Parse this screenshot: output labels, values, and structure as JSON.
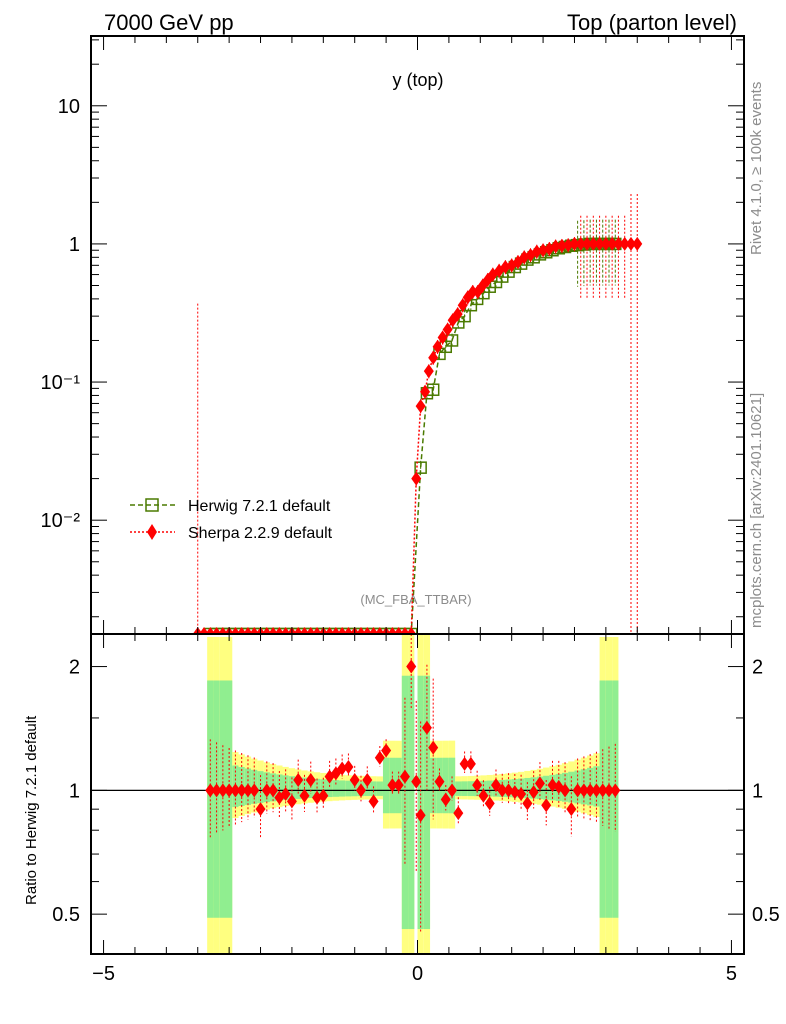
{
  "header": {
    "left": "7000 GeV pp",
    "right": "Top (parton level)"
  },
  "side": {
    "rivet": "Rivet 4.1.0, ≥ 100k events",
    "mcplots": "mcplots.cern.ch [arXiv:2401.10621]"
  },
  "watermark": "(MC_FBA_TTBAR)",
  "ratio_ylabel": "Ratio to Herwig 7.2.1 default",
  "colors": {
    "herwig": "#4a7a00",
    "sherpa": "#ff0000",
    "band_yellow": "#ffff80",
    "band_green": "#90ee90"
  },
  "chart_data": [
    {
      "type": "scatter",
      "title": "y (top)",
      "xlabel": "",
      "ylabel": "",
      "yscale": "log",
      "xlim": [
        -5.2,
        5.2
      ],
      "ylim": [
        0.0015,
        32
      ],
      "x_ticks": [
        "−5",
        "0",
        "5"
      ],
      "y_ticks": [
        "10",
        "1",
        "10⁻¹",
        "10⁻²"
      ],
      "legend": [
        "Herwig 7.2.1 default",
        "Sherpa 2.2.9 default"
      ],
      "series": [
        {
          "name": "Herwig 7.2.1 default",
          "style": "dashed-green-open-square",
          "x": [
            -3.3,
            -3.2,
            -3.1,
            -3.0,
            -2.9,
            -2.8,
            -2.7,
            -2.6,
            -2.5,
            -2.4,
            -2.3,
            -2.2,
            -2.1,
            -2.0,
            -1.9,
            -1.8,
            -1.7,
            -1.6,
            -1.5,
            -1.4,
            -1.3,
            -1.2,
            -1.1,
            -1.0,
            -0.9,
            -0.8,
            -0.7,
            -0.6,
            -0.5,
            -0.4,
            -0.3,
            -0.2,
            -0.1,
            0.05,
            0.15,
            0.25,
            0.35,
            0.45,
            0.55,
            0.65,
            0.75,
            0.85,
            0.95,
            1.05,
            1.15,
            1.25,
            1.35,
            1.45,
            1.55,
            1.65,
            1.75,
            1.85,
            1.95,
            2.05,
            2.15,
            2.25,
            2.35,
            2.45,
            2.55,
            2.65,
            2.75,
            2.85,
            2.95,
            3.05,
            3.15
          ],
          "y": [
            0.0015,
            0.0015,
            0.0015,
            0.0015,
            0.0015,
            0.0015,
            0.0015,
            0.0015,
            0.0015,
            0.0015,
            0.0015,
            0.0015,
            0.0015,
            0.0015,
            0.0015,
            0.0015,
            0.0015,
            0.0015,
            0.0015,
            0.0015,
            0.0015,
            0.0015,
            0.0015,
            0.0015,
            0.0015,
            0.0015,
            0.0015,
            0.0015,
            0.0015,
            0.0015,
            0.0015,
            0.0015,
            0.0015,
            0.024,
            0.083,
            0.088,
            0.16,
            0.18,
            0.2,
            0.27,
            0.3,
            0.36,
            0.4,
            0.44,
            0.49,
            0.53,
            0.58,
            0.63,
            0.68,
            0.72,
            0.77,
            0.8,
            0.84,
            0.87,
            0.9,
            0.93,
            0.95,
            0.97,
            0.98,
            0.99,
            1.0,
            1.0,
            1.0,
            1.0,
            1.0
          ]
        },
        {
          "name": "Sherpa 2.2.9 default",
          "style": "dotted-red-diamond",
          "x": [
            -3.5,
            -3.4,
            -3.3,
            -3.2,
            -3.1,
            -3.0,
            -2.9,
            -2.8,
            -2.7,
            -2.6,
            -2.5,
            -2.4,
            -2.3,
            -2.2,
            -2.1,
            -2.0,
            -1.9,
            -1.8,
            -1.7,
            -1.6,
            -1.5,
            -1.4,
            -1.3,
            -1.2,
            -1.1,
            -1.0,
            -0.9,
            -0.8,
            -0.7,
            -0.6,
            -0.5,
            -0.4,
            -0.3,
            -0.2,
            -0.1,
            -0.02,
            0.05,
            0.12,
            0.18,
            0.25,
            0.32,
            0.4,
            0.48,
            0.56,
            0.64,
            0.72,
            0.8,
            0.88,
            0.96,
            1.04,
            1.12,
            1.2,
            1.3,
            1.4,
            1.5,
            1.6,
            1.7,
            1.8,
            1.9,
            2.0,
            2.1,
            2.2,
            2.3,
            2.4,
            2.5,
            2.6,
            2.7,
            2.8,
            2.9,
            3.0,
            3.1,
            3.2,
            3.3,
            3.4,
            3.5
          ],
          "y": [
            0.0015,
            0.0015,
            0.0015,
            0.0015,
            0.0015,
            0.0015,
            0.0015,
            0.0015,
            0.0015,
            0.0015,
            0.0015,
            0.0015,
            0.0015,
            0.0015,
            0.0015,
            0.0015,
            0.0015,
            0.0015,
            0.0015,
            0.0015,
            0.0015,
            0.0015,
            0.0015,
            0.0015,
            0.0015,
            0.0015,
            0.0015,
            0.0015,
            0.0015,
            0.0015,
            0.0015,
            0.0015,
            0.0015,
            0.0015,
            0.0015,
            0.02,
            0.067,
            0.085,
            0.12,
            0.15,
            0.18,
            0.21,
            0.24,
            0.28,
            0.31,
            0.36,
            0.41,
            0.45,
            0.45,
            0.5,
            0.55,
            0.6,
            0.64,
            0.68,
            0.7,
            0.74,
            0.8,
            0.83,
            0.88,
            0.9,
            0.92,
            0.96,
            0.97,
            0.98,
            1.0,
            1.0,
            1.0,
            1.0,
            1.0,
            1.0,
            1.0,
            1.0,
            1.0,
            1.0,
            1.0
          ]
        }
      ]
    },
    {
      "type": "scatter",
      "title": "",
      "xlabel": "",
      "ylabel": "Ratio to Herwig 7.2.1 default",
      "yscale": "log",
      "xlim": [
        -5.2,
        5.2
      ],
      "ylim": [
        0.4,
        2.4
      ],
      "x_ticks": [
        "−5",
        "0",
        "5"
      ],
      "y_ticks": [
        "2",
        "1",
        "0.5"
      ],
      "reference_line": 1.0,
      "series": [
        {
          "name": "Sherpa 2.2.9 default / Herwig 7.2.1 default",
          "x": [
            -3.3,
            -3.2,
            -3.1,
            -3.0,
            -2.9,
            -2.8,
            -2.7,
            -2.6,
            -2.5,
            -2.4,
            -2.3,
            -2.2,
            -2.1,
            -2.0,
            -1.9,
            -1.8,
            -1.7,
            -1.6,
            -1.5,
            -1.4,
            -1.3,
            -1.2,
            -1.1,
            -1.0,
            -0.9,
            -0.8,
            -0.7,
            -0.6,
            -0.5,
            -0.4,
            -0.3,
            -0.2,
            -0.1,
            -0.02,
            0.05,
            0.15,
            0.25,
            0.35,
            0.45,
            0.55,
            0.65,
            0.75,
            0.85,
            0.95,
            1.05,
            1.15,
            1.25,
            1.35,
            1.45,
            1.55,
            1.65,
            1.75,
            1.85,
            1.95,
            2.05,
            2.15,
            2.25,
            2.35,
            2.45,
            2.55,
            2.65,
            2.75,
            2.85,
            2.95,
            3.05,
            3.15
          ],
          "y": [
            1.0,
            1.0,
            1.0,
            1.0,
            1.0,
            1.0,
            1.0,
            1.0,
            0.9,
            1.0,
            1.0,
            0.96,
            0.98,
            0.94,
            1.06,
            0.97,
            1.06,
            0.96,
            0.97,
            1.08,
            1.1,
            1.13,
            1.14,
            1.06,
            1.0,
            1.06,
            0.94,
            1.2,
            1.25,
            1.03,
            1.03,
            1.08,
            2.0,
            1.05,
            0.87,
            1.42,
            1.27,
            1.05,
            0.95,
            1.0,
            0.88,
            1.16,
            1.16,
            1.03,
            0.97,
            0.93,
            1.03,
            1.0,
            1.0,
            0.99,
            0.98,
            0.93,
            0.99,
            1.04,
            0.92,
            1.03,
            1.02,
            1.0,
            0.9,
            1.0,
            1.0,
            1.0,
            1.0,
            1.0,
            1.0,
            1.0
          ]
        }
      ]
    }
  ]
}
